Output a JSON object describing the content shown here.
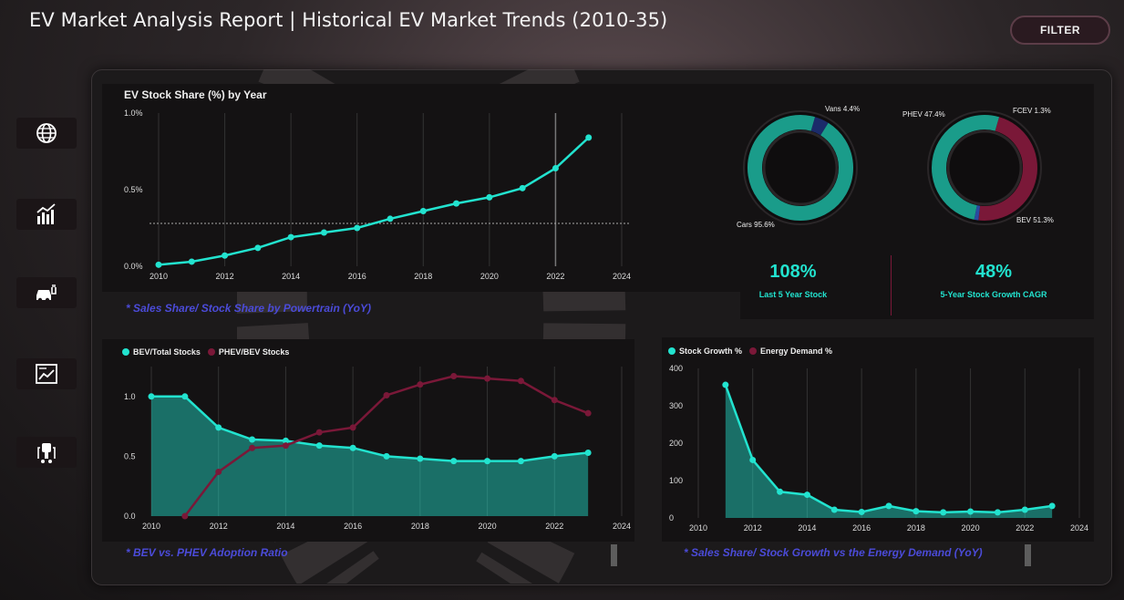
{
  "header": {
    "title": "EV Market Analysis Report | Historical EV Market Trends (2010-35)",
    "filter_label": "FILTER"
  },
  "nav": [
    {
      "icon": "globe-icon"
    },
    {
      "icon": "bar-chart-icon"
    },
    {
      "icon": "ev-car-icon"
    },
    {
      "icon": "trend-report-icon"
    },
    {
      "icon": "charging-station-icon"
    }
  ],
  "colors": {
    "teal": "#22e3cf",
    "maroon": "#7a1838",
    "navy": "#1b2b6a",
    "link": "#4b4bd8"
  },
  "stock_share": {
    "title": "EV Stock Share (%) by Year",
    "link": "* Sales Share/ Stock Share by Powertrain (YoY)"
  },
  "donut1": {
    "labels": [
      "Vans 4.4%",
      "Cars 95.6%"
    ]
  },
  "donut2": {
    "labels": [
      "PHEV 47.4%",
      "FCEV 1.3%",
      "BEV 51.3%"
    ]
  },
  "kpis": [
    {
      "value": "108%",
      "label": "Last 5 Year Stock"
    },
    {
      "value": "48%",
      "label": "5-Year Stock Growth CAGR"
    }
  ],
  "ratio_chart": {
    "legend": [
      "BEV/Total Stocks",
      "PHEV/BEV Stocks"
    ],
    "link": "* BEV vs. PHEV Adoption Ratio"
  },
  "growth_chart": {
    "legend": [
      "Stock Growth %",
      "Energy Demand %"
    ],
    "link": "* Sales Share/ Stock Growth vs the Energy Demand (YoY)"
  },
  "chart_data": [
    {
      "type": "line",
      "title": "EV Stock Share (%) by Year",
      "x": [
        2010,
        2011,
        2012,
        2013,
        2014,
        2015,
        2016,
        2017,
        2018,
        2019,
        2020,
        2021,
        2022,
        2023
      ],
      "series": [
        {
          "values": [
            0.01,
            0.03,
            0.07,
            0.12,
            0.19,
            0.22,
            0.25,
            0.31,
            0.36,
            0.41,
            0.45,
            0.51,
            0.64,
            0.84
          ]
        }
      ],
      "xticks": [
        "2010",
        "2012",
        "2014",
        "2016",
        "2018",
        "2020",
        "2022",
        "2024"
      ],
      "yticks": [
        "0.0%",
        "0.5%",
        "1.0%"
      ],
      "xlim": [
        2010,
        2024
      ],
      "ylim": [
        0,
        1.0
      ],
      "reference_line": 0.28
    },
    {
      "type": "donut",
      "slices": [
        {
          "label": "Vans",
          "value": 4.4
        },
        {
          "label": "Cars",
          "value": 95.6
        }
      ]
    },
    {
      "type": "donut",
      "slices": [
        {
          "label": "PHEV",
          "value": 47.4
        },
        {
          "label": "FCEV",
          "value": 1.3
        },
        {
          "label": "BEV",
          "value": 51.3
        }
      ]
    },
    {
      "type": "area",
      "x": [
        2010,
        2011,
        2012,
        2013,
        2014,
        2015,
        2016,
        2017,
        2018,
        2019,
        2020,
        2021,
        2022,
        2023
      ],
      "series": [
        {
          "name": "BEV/Total Stocks",
          "values": [
            1.0,
            1.0,
            0.74,
            0.64,
            0.63,
            0.59,
            0.57,
            0.5,
            0.48,
            0.46,
            0.46,
            0.46,
            0.5,
            0.53
          ]
        },
        {
          "name": "PHEV/BEV Stocks",
          "values": [
            null,
            0.0,
            0.37,
            0.57,
            0.59,
            0.7,
            0.74,
            1.01,
            1.1,
            1.17,
            1.15,
            1.13,
            0.97,
            0.86
          ]
        }
      ],
      "xticks": [
        "2010",
        "2012",
        "2014",
        "2016",
        "2018",
        "2020",
        "2022",
        "2024"
      ],
      "yticks": [
        "0.0",
        "0.5",
        "1.0"
      ],
      "xlim": [
        2010,
        2024
      ],
      "ylim": [
        0,
        1.25
      ]
    },
    {
      "type": "area",
      "x": [
        2011,
        2012,
        2013,
        2014,
        2015,
        2016,
        2017,
        2018,
        2019,
        2020,
        2021,
        2022,
        2023
      ],
      "series": [
        {
          "name": "Stock Growth %",
          "values": [
            356,
            155,
            70,
            62,
            22,
            16,
            32,
            18,
            15,
            17,
            15,
            22,
            32
          ]
        }
      ],
      "xticks": [
        "2010",
        "2012",
        "2014",
        "2016",
        "2018",
        "2020",
        "2022",
        "2024"
      ],
      "yticks": [
        "0",
        "100",
        "200",
        "300",
        "400"
      ],
      "xlim": [
        2010,
        2024
      ],
      "ylim": [
        0,
        400
      ]
    }
  ]
}
